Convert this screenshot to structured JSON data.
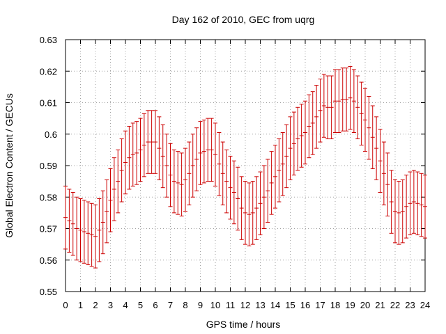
{
  "chart_data": {
    "type": "scatter",
    "title": "Day 162 of 2010, GEC from uqrg",
    "xlabel": "GPS time / hours",
    "ylabel": "Global Electron Content / GECUs",
    "xlim": [
      0,
      24
    ],
    "ylim": [
      0.55,
      0.63
    ],
    "grid": true,
    "error_bar": 0.01,
    "series_color": "#cc0000",
    "xticks": [
      "0",
      "1",
      "2",
      "3",
      "4",
      "5",
      "6",
      "7",
      "8",
      "9",
      "10",
      "11",
      "12",
      "13",
      "14",
      "15",
      "16",
      "17",
      "18",
      "19",
      "20",
      "21",
      "22",
      "23",
      "24"
    ],
    "yticks": [
      "0.55",
      "0.56",
      "0.57",
      "0.58",
      "0.59",
      "0.6",
      "0.61",
      "0.62",
      "0.63"
    ],
    "series": [
      {
        "x": [
          0.0,
          0.25,
          0.5,
          0.75,
          1.0,
          1.25,
          1.5,
          1.75,
          2.0,
          2.25,
          2.5,
          2.75,
          3.0,
          3.25,
          3.5,
          3.75,
          4.0,
          4.25,
          4.5,
          4.75,
          5.0,
          5.25,
          5.5,
          5.75,
          6.0,
          6.25,
          6.5,
          6.75,
          7.0,
          7.25,
          7.5,
          7.75,
          8.0,
          8.25,
          8.5,
          8.75,
          9.0,
          9.25,
          9.5,
          9.75,
          10.0,
          10.25,
          10.5,
          10.75,
          11.0,
          11.25,
          11.5,
          11.75,
          12.0,
          12.25,
          12.5,
          12.75,
          13.0,
          13.25,
          13.5,
          13.75,
          14.0,
          14.25,
          14.5,
          14.75,
          15.0,
          15.25,
          15.5,
          15.75,
          16.0,
          16.25,
          16.5,
          16.75,
          17.0,
          17.25,
          17.5,
          17.75,
          18.0,
          18.25,
          18.5,
          18.75,
          19.0,
          19.25,
          19.5,
          19.75,
          20.0,
          20.25,
          20.5,
          20.75,
          21.0,
          21.25,
          21.5,
          21.75,
          22.0,
          22.25,
          22.5,
          22.75,
          23.0,
          23.25,
          23.5,
          23.75,
          24.0
        ],
        "y": [
          0.5735,
          0.5725,
          0.5715,
          0.57,
          0.5695,
          0.569,
          0.5685,
          0.568,
          0.5675,
          0.5695,
          0.572,
          0.5755,
          0.579,
          0.5825,
          0.585,
          0.5885,
          0.591,
          0.5925,
          0.5935,
          0.594,
          0.595,
          0.5965,
          0.5975,
          0.5975,
          0.5975,
          0.5955,
          0.593,
          0.59,
          0.587,
          0.585,
          0.5845,
          0.584,
          0.5855,
          0.5875,
          0.59,
          0.592,
          0.594,
          0.5945,
          0.595,
          0.595,
          0.5935,
          0.5905,
          0.5875,
          0.585,
          0.583,
          0.5815,
          0.5795,
          0.5765,
          0.575,
          0.5745,
          0.575,
          0.5765,
          0.578,
          0.58,
          0.582,
          0.5845,
          0.5865,
          0.5885,
          0.5905,
          0.593,
          0.5955,
          0.597,
          0.5985,
          0.5995,
          0.6005,
          0.6025,
          0.6035,
          0.6055,
          0.6075,
          0.609,
          0.6085,
          0.6085,
          0.6105,
          0.6105,
          0.611,
          0.611,
          0.6115,
          0.6105,
          0.6085,
          0.6065,
          0.6045,
          0.602,
          0.599,
          0.5955,
          0.5915,
          0.5875,
          0.584,
          0.5785,
          0.5755,
          0.575,
          0.5755,
          0.577,
          0.578,
          0.5785,
          0.578,
          0.5775,
          0.577
        ]
      }
    ]
  }
}
